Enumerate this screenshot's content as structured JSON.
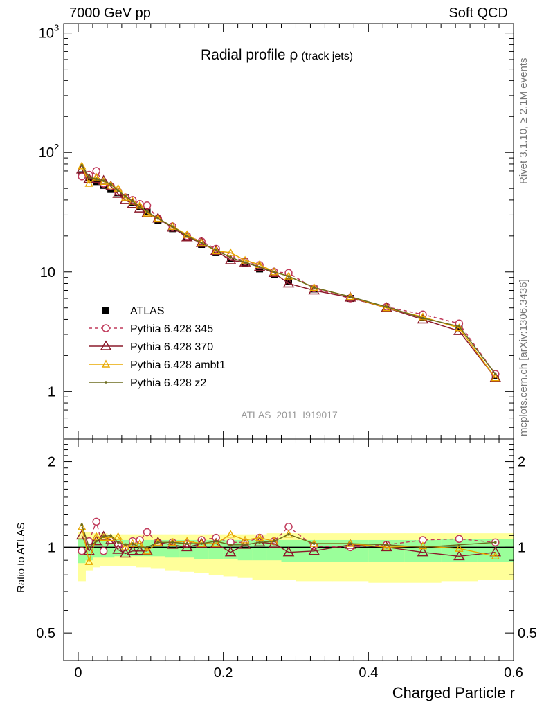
{
  "header": {
    "left": "7000 GeV pp",
    "right": "Soft QCD"
  },
  "side_labels": {
    "rivet": "Rivet 3.1.10, ≥ 2.1M events",
    "mcplots": "mcplots.cern.ch [arXiv:1306.3436]"
  },
  "chart_data": [
    {
      "type": "line",
      "title": "Radial profile",
      "title_symbol": "ρ",
      "subtitle": "(track jets)",
      "analysis_tag": "ATLAS_2011_I919017",
      "xlabel": "Charged Particle r",
      "ylabel": "",
      "y_scale": "log",
      "xlim": [
        -0.02,
        0.6
      ],
      "ylim": [
        0.4,
        1200
      ],
      "x_ticks": [
        "0",
        "0.2",
        "0.4",
        "0.6"
      ],
      "y_ticks": [
        "1",
        "10",
        "10²",
        "10³"
      ],
      "legend_position": "left-center",
      "x": [
        0.005,
        0.015,
        0.025,
        0.035,
        0.045,
        0.055,
        0.065,
        0.075,
        0.085,
        0.095,
        0.11,
        0.13,
        0.15,
        0.17,
        0.19,
        0.21,
        0.23,
        0.25,
        0.27,
        0.29,
        0.325,
        0.375,
        0.425,
        0.475,
        0.525,
        0.575
      ],
      "series": [
        {
          "name": "ATLAS",
          "color": "#000000",
          "marker": "square",
          "values": [
            65,
            62,
            57,
            53,
            49,
            46,
            42,
            38,
            35,
            32,
            27,
            23,
            19.5,
            17,
            14.5,
            13,
            11.8,
            10.6,
            9.5,
            8.3,
            7.2,
            6.0,
            5.0,
            4.15,
            3.45,
            1.35
          ]
        },
        {
          "name": "Pythia 6.428 345",
          "color": "#c0395a",
          "marker": "circle",
          "dash": "5,4",
          "values": [
            63,
            65,
            70,
            55,
            52,
            47,
            42,
            40,
            37,
            36,
            28,
            24,
            20,
            18,
            15.6,
            13.5,
            12.3,
            11.4,
            10.0,
            9.8,
            7.3,
            6.0,
            5.1,
            4.4,
            3.7,
            1.4
          ]
        },
        {
          "name": "Pythia 6.428 370",
          "color": "#8b1a2b",
          "marker": "triangle",
          "values": [
            72,
            60,
            60,
            58,
            52,
            45,
            40,
            37,
            34,
            31,
            28,
            23.5,
            19.5,
            17.5,
            15,
            12.5,
            12,
            11,
            9.8,
            8.0,
            7.0,
            6.1,
            5.0,
            4.0,
            3.2,
            1.3
          ]
        },
        {
          "name": "Pythia 6.428 ambt1",
          "color": "#e8a800",
          "marker": "triangle-small",
          "values": [
            77,
            55,
            62,
            57,
            53,
            50,
            42,
            39,
            36,
            31,
            28,
            24,
            20.5,
            17.5,
            15,
            14.5,
            12.5,
            11.5,
            10,
            9.2,
            7.4,
            6.2,
            5.0,
            4.2,
            3.4,
            1.3
          ]
        },
        {
          "name": "Pythia 6.428 z2",
          "color": "#6b6b1e",
          "marker": "dot",
          "values": [
            78,
            62,
            60,
            58,
            54,
            48,
            43,
            39,
            35,
            32,
            28,
            24,
            20,
            17.5,
            15.2,
            13.2,
            12,
            11,
            10,
            9.2,
            7.4,
            6.2,
            5.1,
            4.1,
            3.5,
            1.4
          ]
        }
      ]
    },
    {
      "type": "line",
      "title": "",
      "xlabel": "Charged Particle r",
      "ylabel": "Ratio to ATLAS",
      "y_scale": "log",
      "ylim": [
        0.4,
        2.4
      ],
      "y_ticks": [
        "0.5",
        "1",
        "2"
      ],
      "reference_line": 1,
      "band_edges": [
        0,
        0.01,
        0.02,
        0.03,
        0.04,
        0.05,
        0.06,
        0.07,
        0.08,
        0.09,
        0.1,
        0.12,
        0.14,
        0.16,
        0.18,
        0.2,
        0.22,
        0.24,
        0.26,
        0.28,
        0.3,
        0.35,
        0.4,
        0.45,
        0.5,
        0.55,
        0.6
      ],
      "band_inner_lo": [
        0.88,
        0.9,
        0.92,
        0.92,
        0.92,
        0.93,
        0.93,
        0.93,
        0.93,
        0.93,
        0.93,
        0.92,
        0.92,
        0.91,
        0.91,
        0.91,
        0.9,
        0.9,
        0.9,
        0.89,
        0.89,
        0.89,
        0.89,
        0.89,
        0.89,
        0.89
      ],
      "band_inner_hi": [
        1.07,
        1.07,
        1.06,
        1.06,
        1.06,
        1.06,
        1.06,
        1.06,
        1.06,
        1.06,
        1.06,
        1.06,
        1.06,
        1.06,
        1.06,
        1.06,
        1.06,
        1.06,
        1.06,
        1.06,
        1.06,
        1.06,
        1.06,
        1.06,
        1.07,
        1.07
      ],
      "band_outer_lo": [
        0.76,
        0.83,
        0.85,
        0.86,
        0.86,
        0.86,
        0.86,
        0.86,
        0.85,
        0.85,
        0.84,
        0.83,
        0.82,
        0.81,
        0.8,
        0.79,
        0.78,
        0.77,
        0.77,
        0.77,
        0.76,
        0.76,
        0.75,
        0.75,
        0.76,
        0.77
      ],
      "band_outer_hi": [
        1.13,
        1.13,
        1.12,
        1.12,
        1.11,
        1.11,
        1.11,
        1.11,
        1.11,
        1.11,
        1.11,
        1.11,
        1.11,
        1.11,
        1.11,
        1.11,
        1.11,
        1.11,
        1.12,
        1.12,
        1.12,
        1.12,
        1.12,
        1.12,
        1.12,
        1.12
      ],
      "series": [
        {
          "name": "Pythia 6.428 345",
          "values": [
            0.97,
            1.05,
            1.23,
            0.97,
            1.06,
            1.02,
            1.0,
            1.05,
            1.06,
            1.13,
            1.04,
            1.04,
            1.03,
            1.06,
            1.08,
            1.04,
            1.04,
            1.08,
            1.05,
            1.18,
            1.01,
            1.0,
            1.02,
            1.06,
            1.07,
            1.04
          ]
        },
        {
          "name": "Pythia 6.428 370",
          "values": [
            1.1,
            0.97,
            1.05,
            1.09,
            1.06,
            0.98,
            0.95,
            0.97,
            0.97,
            0.97,
            1.04,
            1.02,
            1.0,
            1.03,
            1.03,
            0.96,
            1.02,
            1.04,
            1.03,
            0.96,
            0.97,
            1.02,
            1.0,
            0.96,
            0.93,
            0.96
          ]
        },
        {
          "name": "Pythia 6.428 ambt1",
          "values": [
            1.18,
            0.89,
            1.09,
            1.08,
            1.08,
            1.09,
            1.0,
            1.03,
            1.03,
            0.97,
            1.04,
            1.04,
            1.05,
            1.03,
            1.03,
            1.11,
            1.06,
            1.08,
            1.05,
            1.11,
            1.03,
            1.03,
            1.0,
            1.01,
            0.99,
            0.93
          ]
        },
        {
          "name": "Pythia 6.428 z2",
          "values": [
            1.2,
            1.0,
            1.05,
            1.09,
            1.1,
            1.04,
            1.02,
            1.03,
            1.0,
            1.0,
            1.04,
            1.04,
            1.03,
            1.03,
            1.05,
            1.02,
            1.02,
            1.04,
            1.05,
            1.11,
            1.03,
            1.03,
            1.02,
            1.0,
            1.02,
            1.04
          ]
        }
      ]
    }
  ]
}
